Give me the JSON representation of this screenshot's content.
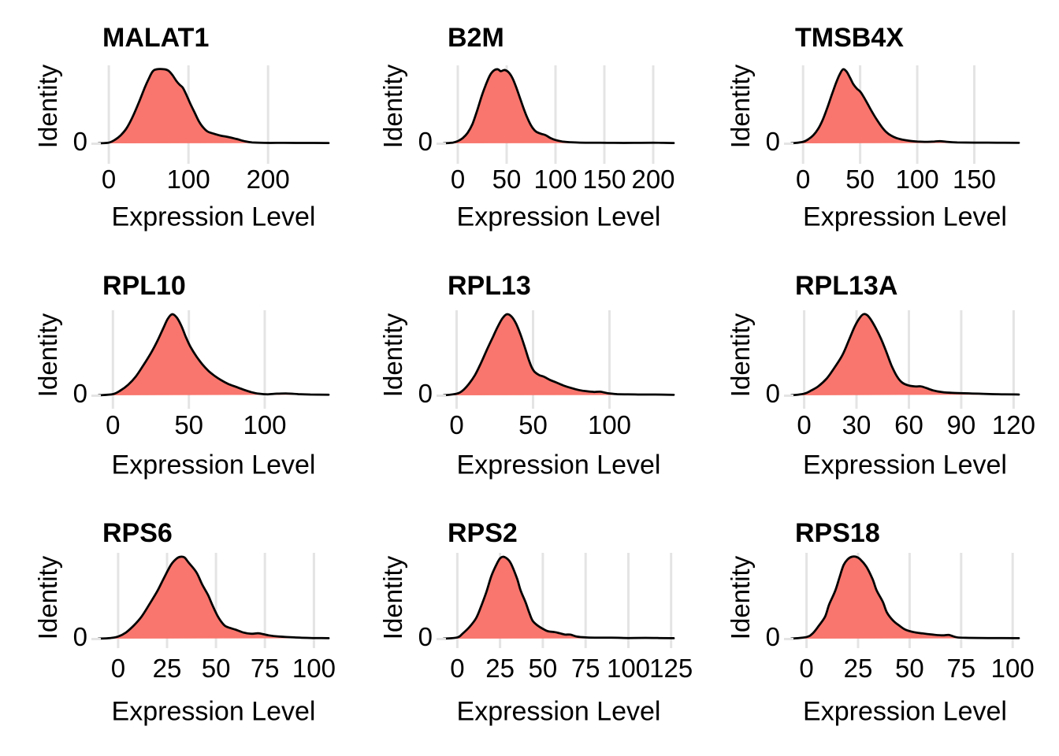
{
  "figure": {
    "ylabel": "Identity",
    "y_tick_label": "0",
    "xlabel": "Expression Level",
    "fill_color": "#F8766D",
    "line_color": "#000000",
    "grid_color": "#E4E4E4",
    "background_color": "#FFFFFF"
  },
  "chart_data": [
    {
      "type": "area",
      "title": "MALAT1",
      "xlabel": "Expression Level",
      "ylabel": "Identity",
      "x_ticks": [
        0,
        100,
        200
      ],
      "xlim": [
        -13,
        276
      ],
      "y_tick_label": "0",
      "grid": "vertical-only",
      "points": [
        [
          -13,
          0
        ],
        [
          0,
          0.01
        ],
        [
          8,
          0.05
        ],
        [
          15,
          0.11
        ],
        [
          22,
          0.2
        ],
        [
          30,
          0.36
        ],
        [
          38,
          0.56
        ],
        [
          45,
          0.75
        ],
        [
          50,
          0.87
        ],
        [
          55,
          0.97
        ],
        [
          60,
          1.0
        ],
        [
          70,
          1.0
        ],
        [
          75,
          0.98
        ],
        [
          80,
          0.92
        ],
        [
          85,
          0.84
        ],
        [
          89,
          0.79
        ],
        [
          93,
          0.75
        ],
        [
          98,
          0.64
        ],
        [
          103,
          0.52
        ],
        [
          108,
          0.41
        ],
        [
          113,
          0.3
        ],
        [
          118,
          0.22
        ],
        [
          124,
          0.16
        ],
        [
          132,
          0.13
        ],
        [
          140,
          0.105
        ],
        [
          150,
          0.085
        ],
        [
          160,
          0.06
        ],
        [
          170,
          0.03
        ],
        [
          180,
          0.012
        ],
        [
          195,
          0.006
        ],
        [
          220,
          0.006
        ],
        [
          250,
          0.005
        ],
        [
          276,
          0.004
        ]
      ]
    },
    {
      "type": "area",
      "title": "B2M",
      "xlabel": "Expression Level",
      "ylabel": "Identity",
      "x_ticks": [
        0,
        50,
        100,
        150,
        200
      ],
      "xlim": [
        -14.5,
        221
      ],
      "y_tick_label": "0",
      "grid": "vertical-only",
      "points": [
        [
          -14.5,
          0
        ],
        [
          -5,
          0.01
        ],
        [
          0,
          0.03
        ],
        [
          5,
          0.07
        ],
        [
          10,
          0.14
        ],
        [
          15,
          0.26
        ],
        [
          20,
          0.45
        ],
        [
          25,
          0.66
        ],
        [
          29,
          0.8
        ],
        [
          33,
          0.92
        ],
        [
          37,
          0.985
        ],
        [
          41,
          1.0
        ],
        [
          44,
          0.975
        ],
        [
          48,
          0.99
        ],
        [
          52,
          0.96
        ],
        [
          56,
          0.88
        ],
        [
          60,
          0.75
        ],
        [
          64,
          0.6
        ],
        [
          68,
          0.45
        ],
        [
          72,
          0.32
        ],
        [
          76,
          0.22
        ],
        [
          80,
          0.16
        ],
        [
          85,
          0.13
        ],
        [
          90,
          0.11
        ],
        [
          95,
          0.07
        ],
        [
          100,
          0.045
        ],
        [
          107,
          0.025
        ],
        [
          115,
          0.015
        ],
        [
          125,
          0.01
        ],
        [
          140,
          0.008
        ],
        [
          160,
          0.006
        ],
        [
          180,
          0.006
        ],
        [
          200,
          0.008
        ],
        [
          210,
          0.006
        ],
        [
          221,
          0.004
        ]
      ]
    },
    {
      "type": "area",
      "title": "TMSB4X",
      "xlabel": "Expression Level",
      "ylabel": "Identity",
      "x_ticks": [
        0,
        50,
        100,
        150
      ],
      "xlim": [
        -10.5,
        189
      ],
      "y_tick_label": "0",
      "grid": "vertical-only",
      "points": [
        [
          -10.5,
          0
        ],
        [
          0,
          0.02
        ],
        [
          5,
          0.06
        ],
        [
          9,
          0.11
        ],
        [
          13,
          0.19
        ],
        [
          17,
          0.31
        ],
        [
          21,
          0.47
        ],
        [
          25,
          0.65
        ],
        [
          29,
          0.82
        ],
        [
          32,
          0.93
        ],
        [
          35,
          1.0
        ],
        [
          38,
          0.97
        ],
        [
          41,
          0.89
        ],
        [
          44,
          0.8
        ],
        [
          47,
          0.74
        ],
        [
          50,
          0.7
        ],
        [
          53,
          0.63
        ],
        [
          57,
          0.52
        ],
        [
          61,
          0.41
        ],
        [
          65,
          0.31
        ],
        [
          69,
          0.22
        ],
        [
          73,
          0.15
        ],
        [
          77,
          0.105
        ],
        [
          82,
          0.07
        ],
        [
          87,
          0.05
        ],
        [
          93,
          0.035
        ],
        [
          100,
          0.025
        ],
        [
          108,
          0.02
        ],
        [
          115,
          0.025
        ],
        [
          120,
          0.03
        ],
        [
          126,
          0.02
        ],
        [
          135,
          0.012
        ],
        [
          150,
          0.01
        ],
        [
          170,
          0.008
        ],
        [
          189,
          0.006
        ]
      ]
    },
    {
      "type": "area",
      "title": "RPL10",
      "xlabel": "Expression Level",
      "ylabel": "Identity",
      "x_ticks": [
        0,
        50,
        100
      ],
      "xlim": [
        -9.5,
        142
      ],
      "y_tick_label": "0",
      "grid": "vertical-only",
      "points": [
        [
          -9.5,
          0
        ],
        [
          0,
          0.015
        ],
        [
          5,
          0.06
        ],
        [
          10,
          0.13
        ],
        [
          15,
          0.23
        ],
        [
          20,
          0.37
        ],
        [
          25,
          0.52
        ],
        [
          29,
          0.66
        ],
        [
          33,
          0.82
        ],
        [
          36,
          0.94
        ],
        [
          39,
          1.0
        ],
        [
          42,
          0.96
        ],
        [
          45,
          0.86
        ],
        [
          48,
          0.72
        ],
        [
          51,
          0.6
        ],
        [
          55,
          0.48
        ],
        [
          59,
          0.38
        ],
        [
          63,
          0.3
        ],
        [
          67,
          0.24
        ],
        [
          71,
          0.19
        ],
        [
          76,
          0.14
        ],
        [
          81,
          0.105
        ],
        [
          86,
          0.07
        ],
        [
          91,
          0.04
        ],
        [
          96,
          0.02
        ],
        [
          102,
          0.013
        ],
        [
          108,
          0.02
        ],
        [
          115,
          0.022
        ],
        [
          122,
          0.015
        ],
        [
          130,
          0.01
        ],
        [
          142,
          0.008
        ]
      ]
    },
    {
      "type": "area",
      "title": "RPL13",
      "xlabel": "Expression Level",
      "ylabel": "Identity",
      "x_ticks": [
        0,
        50,
        100
      ],
      "xlim": [
        -8.5,
        142
      ],
      "y_tick_label": "0",
      "grid": "vertical-only",
      "points": [
        [
          -8.5,
          0
        ],
        [
          0,
          0.02
        ],
        [
          4,
          0.06
        ],
        [
          8,
          0.14
        ],
        [
          12,
          0.25
        ],
        [
          16,
          0.4
        ],
        [
          20,
          0.57
        ],
        [
          24,
          0.73
        ],
        [
          27,
          0.85
        ],
        [
          30,
          0.95
        ],
        [
          33,
          1.0
        ],
        [
          36,
          0.97
        ],
        [
          39,
          0.88
        ],
        [
          42,
          0.74
        ],
        [
          45,
          0.57
        ],
        [
          47,
          0.45
        ],
        [
          49,
          0.35
        ],
        [
          51,
          0.29
        ],
        [
          54,
          0.25
        ],
        [
          57,
          0.23
        ],
        [
          61,
          0.19
        ],
        [
          65,
          0.16
        ],
        [
          70,
          0.12
        ],
        [
          75,
          0.09
        ],
        [
          80,
          0.065
        ],
        [
          85,
          0.05
        ],
        [
          90,
          0.042
        ],
        [
          94,
          0.045
        ],
        [
          99,
          0.025
        ],
        [
          105,
          0.015
        ],
        [
          112,
          0.012
        ],
        [
          120,
          0.01
        ],
        [
          130,
          0.01
        ],
        [
          142,
          0.006
        ]
      ]
    },
    {
      "type": "area",
      "title": "RPL13A",
      "xlabel": "Expression Level",
      "ylabel": "Identity",
      "x_ticks": [
        0,
        30,
        60,
        90,
        120
      ],
      "xlim": [
        -7.5,
        123
      ],
      "y_tick_label": "0",
      "grid": "vertical-only",
      "points": [
        [
          -7.5,
          0
        ],
        [
          0,
          0.02
        ],
        [
          4,
          0.06
        ],
        [
          8,
          0.11
        ],
        [
          13,
          0.21
        ],
        [
          17,
          0.33
        ],
        [
          22,
          0.5
        ],
        [
          26,
          0.7
        ],
        [
          29,
          0.85
        ],
        [
          32,
          0.96
        ],
        [
          34,
          1.0
        ],
        [
          36,
          0.99
        ],
        [
          38,
          0.94
        ],
        [
          41,
          0.83
        ],
        [
          44,
          0.7
        ],
        [
          47,
          0.54
        ],
        [
          50,
          0.37
        ],
        [
          53,
          0.24
        ],
        [
          56,
          0.16
        ],
        [
          60,
          0.12
        ],
        [
          64,
          0.11
        ],
        [
          67,
          0.11
        ],
        [
          70,
          0.09
        ],
        [
          74,
          0.06
        ],
        [
          79,
          0.04
        ],
        [
          85,
          0.03
        ],
        [
          92,
          0.025
        ],
        [
          100,
          0.02
        ],
        [
          108,
          0.015
        ],
        [
          115,
          0.012
        ],
        [
          123,
          0.01
        ]
      ]
    },
    {
      "type": "area",
      "title": "RPS6",
      "xlabel": "Expression Level",
      "ylabel": "Identity",
      "x_ticks": [
        0,
        25,
        50,
        75,
        100
      ],
      "xlim": [
        -10,
        107.5
      ],
      "y_tick_label": "0",
      "grid": "vertical-only",
      "points": [
        [
          -10,
          0
        ],
        [
          -4,
          0.008
        ],
        [
          0,
          0.026
        ],
        [
          4,
          0.075
        ],
        [
          8,
          0.16
        ],
        [
          12,
          0.27
        ],
        [
          16,
          0.42
        ],
        [
          20,
          0.58
        ],
        [
          23,
          0.72
        ],
        [
          27,
          0.9
        ],
        [
          30,
          0.98
        ],
        [
          32,
          1.0
        ],
        [
          34,
          0.99
        ],
        [
          36,
          0.93
        ],
        [
          40,
          0.81
        ],
        [
          43,
          0.66
        ],
        [
          46,
          0.53
        ],
        [
          48,
          0.42
        ],
        [
          51,
          0.27
        ],
        [
          54,
          0.17
        ],
        [
          56,
          0.14
        ],
        [
          60,
          0.11
        ],
        [
          64,
          0.075
        ],
        [
          68,
          0.06
        ],
        [
          72,
          0.065
        ],
        [
          77,
          0.04
        ],
        [
          82,
          0.026
        ],
        [
          90,
          0.015
        ],
        [
          100,
          0.008
        ],
        [
          107.5,
          0.006
        ]
      ]
    },
    {
      "type": "area",
      "title": "RPS2",
      "xlabel": "Expression Level",
      "ylabel": "Identity",
      "x_ticks": [
        0,
        25,
        50,
        75,
        100,
        125
      ],
      "xlim": [
        -8,
        126.5
      ],
      "y_tick_label": "0",
      "grid": "vertical-only",
      "points": [
        [
          -8,
          0
        ],
        [
          0,
          0.015
        ],
        [
          3,
          0.06
        ],
        [
          7,
          0.14
        ],
        [
          11,
          0.25
        ],
        [
          14,
          0.4
        ],
        [
          17,
          0.57
        ],
        [
          20,
          0.77
        ],
        [
          23,
          0.91
        ],
        [
          25,
          0.98
        ],
        [
          27,
          1.0
        ],
        [
          30,
          0.96
        ],
        [
          32,
          0.89
        ],
        [
          35,
          0.73
        ],
        [
          37,
          0.59
        ],
        [
          40,
          0.44
        ],
        [
          42,
          0.32
        ],
        [
          44,
          0.22
        ],
        [
          47,
          0.16
        ],
        [
          50,
          0.12
        ],
        [
          53,
          0.09
        ],
        [
          57,
          0.08
        ],
        [
          60,
          0.065
        ],
        [
          63,
          0.05
        ],
        [
          66,
          0.05
        ],
        [
          70,
          0.025
        ],
        [
          75,
          0.015
        ],
        [
          82,
          0.012
        ],
        [
          90,
          0.012
        ],
        [
          100,
          0.008
        ],
        [
          110,
          0.01
        ],
        [
          118,
          0.008
        ],
        [
          126.5,
          0.006
        ]
      ]
    },
    {
      "type": "area",
      "title": "RPS18",
      "xlabel": "Expression Level",
      "ylabel": "Identity",
      "x_ticks": [
        0,
        25,
        50,
        75,
        100
      ],
      "xlim": [
        -7.5,
        103
      ],
      "y_tick_label": "0",
      "grid": "vertical-only",
      "points": [
        [
          -7.5,
          0
        ],
        [
          0,
          0.02
        ],
        [
          3,
          0.065
        ],
        [
          6,
          0.16
        ],
        [
          9,
          0.27
        ],
        [
          11,
          0.42
        ],
        [
          14,
          0.59
        ],
        [
          16,
          0.75
        ],
        [
          18,
          0.9
        ],
        [
          20,
          0.97
        ],
        [
          22,
          1.0
        ],
        [
          24,
          1.0
        ],
        [
          26,
          0.97
        ],
        [
          29,
          0.88
        ],
        [
          32,
          0.73
        ],
        [
          34,
          0.59
        ],
        [
          37,
          0.45
        ],
        [
          39,
          0.32
        ],
        [
          42,
          0.22
        ],
        [
          45,
          0.16
        ],
        [
          48,
          0.11
        ],
        [
          52,
          0.08
        ],
        [
          56,
          0.065
        ],
        [
          61,
          0.05
        ],
        [
          66,
          0.04
        ],
        [
          69,
          0.045
        ],
        [
          73,
          0.016
        ],
        [
          79,
          0.01
        ],
        [
          88,
          0.008
        ],
        [
          103,
          0.006
        ]
      ]
    }
  ]
}
